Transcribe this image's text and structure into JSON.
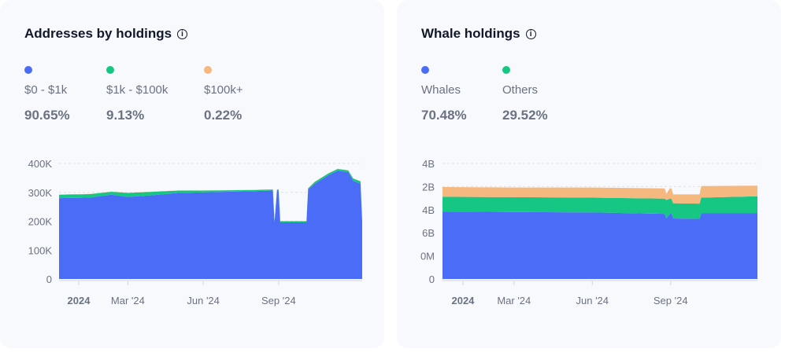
{
  "cards": [
    {
      "title": "Addresses by holdings",
      "legend": [
        {
          "label": "$0 - $1k",
          "value": "90.65%",
          "color": "#4a6cf7"
        },
        {
          "label": "$1k - $100k",
          "value": "9.13%",
          "color": "#16c784"
        },
        {
          "label": "$100k+",
          "value": "0.22%",
          "color": "#f5b87f"
        }
      ]
    },
    {
      "title": "Whale holdings",
      "legend": [
        {
          "label": "Whales",
          "value": "70.48%",
          "color": "#4a6cf7"
        },
        {
          "label": "Others",
          "value": "29.52%",
          "color": "#16c784"
        }
      ]
    }
  ],
  "chart_data": [
    {
      "type": "area",
      "stacked": true,
      "grid": true,
      "ylim": [
        0,
        400000
      ],
      "yticks": [
        {
          "v": 0,
          "label": "0"
        },
        {
          "v": 100000,
          "label": "100K"
        },
        {
          "v": 200000,
          "label": "200K"
        },
        {
          "v": 300000,
          "label": "300K"
        },
        {
          "v": 400000,
          "label": "400K"
        }
      ],
      "xticks": [
        {
          "d": "2024-01-01",
          "label": "2024",
          "bold": true
        },
        {
          "d": "2024-03-01",
          "label": "Mar '24"
        },
        {
          "d": "2024-06-01",
          "label": "Jun '24"
        },
        {
          "d": "2024-09-01",
          "label": "Sep '24"
        }
      ],
      "xlim": [
        "2023-12-08",
        "2024-12-12"
      ],
      "x": [
        "2023-12-08",
        "2024-01-15",
        "2024-02-10",
        "2024-03-01",
        "2024-04-01",
        "2024-05-01",
        "2024-06-01",
        "2024-07-01",
        "2024-08-01",
        "2024-08-25",
        "2024-08-27",
        "2024-08-30",
        "2024-09-01",
        "2024-09-03",
        "2024-10-05",
        "2024-10-07",
        "2024-10-15",
        "2024-11-01",
        "2024-11-12",
        "2024-11-25",
        "2024-12-01",
        "2024-12-10",
        "2024-12-12"
      ],
      "series": [
        {
          "color": "#4a6cf7",
          "values": [
            280000,
            282000,
            292000,
            284000,
            290000,
            298000,
            300000,
            302000,
            304000,
            306000,
            196000,
            306000,
            306000,
            196000,
            196000,
            310000,
            330000,
            360000,
            375000,
            370000,
            340000,
            330000,
            200000
          ]
        },
        {
          "color": "#16c784",
          "values": [
            12000,
            12000,
            10000,
            14000,
            12000,
            8000,
            6000,
            5000,
            4000,
            4000,
            4000,
            4000,
            4000,
            4000,
            4000,
            4000,
            6000,
            6000,
            6000,
            6000,
            8000,
            8000,
            0
          ]
        },
        {
          "color": "#f5b87f",
          "values": [
            600,
            600,
            600,
            600,
            600,
            600,
            600,
            600,
            600,
            600,
            400,
            600,
            600,
            400,
            400,
            600,
            700,
            800,
            800,
            800,
            700,
            700,
            0
          ]
        }
      ]
    },
    {
      "type": "area",
      "stacked": true,
      "grid": true,
      "ylim": [
        0,
        5
      ],
      "yticks": [
        {
          "v": 0,
          "label": "0"
        },
        {
          "v": 1,
          "label": "0M"
        },
        {
          "v": 2,
          "label": "6B"
        },
        {
          "v": 3,
          "label": "4B"
        },
        {
          "v": 4,
          "label": "2B"
        },
        {
          "v": 5,
          "label": "4B"
        }
      ],
      "xticks": [
        {
          "d": "2024-01-01",
          "label": "2024",
          "bold": true
        },
        {
          "d": "2024-03-01",
          "label": "Mar '24"
        },
        {
          "d": "2024-06-01",
          "label": "Jun '24"
        },
        {
          "d": "2024-09-01",
          "label": "Sep '24"
        }
      ],
      "xlim": [
        "2023-12-08",
        "2024-12-12"
      ],
      "x": [
        "2023-12-08",
        "2024-03-01",
        "2024-06-01",
        "2024-08-25",
        "2024-08-27",
        "2024-08-31",
        "2024-09-02",
        "2024-09-04",
        "2024-10-05",
        "2024-10-07",
        "2024-12-12"
      ],
      "series": [
        {
          "color": "#4a6cf7",
          "values": [
            2.92,
            2.9,
            2.88,
            2.82,
            2.62,
            2.82,
            2.85,
            2.62,
            2.6,
            2.84,
            2.84
          ]
        },
        {
          "color": "#16c784",
          "values": [
            0.64,
            0.64,
            0.64,
            0.66,
            0.8,
            0.66,
            0.62,
            0.66,
            0.66,
            0.68,
            0.74
          ]
        },
        {
          "color": "#f5b87f",
          "values": [
            0.42,
            0.42,
            0.44,
            0.44,
            0.26,
            0.44,
            0.45,
            0.38,
            0.4,
            0.5,
            0.46
          ]
        }
      ]
    }
  ]
}
